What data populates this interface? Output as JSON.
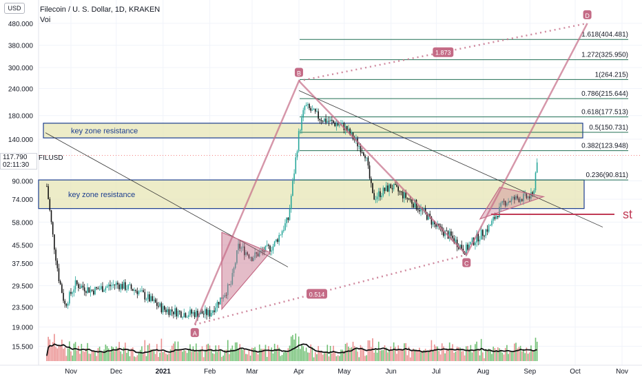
{
  "header": {
    "title": "Filecoin / U. S. Dollar, 1D, KRAKEN",
    "volume_label": "Voi",
    "currency_badge": "USD"
  },
  "price_tag": {
    "price": "117.790",
    "countdown": "02:11:30",
    "symbol": "FILUSD"
  },
  "colors": {
    "zone_fill": "#e7e5b5",
    "zone_border": "#1c3d8f",
    "pattern_pink": "#c46b86",
    "fib_green": "#1f6e52",
    "candle_up": "#26a69a",
    "candle_down": "#111111",
    "vol_up": "#4caf50",
    "vol_down": "#e57373"
  },
  "chart_data": {
    "type": "candlestick",
    "title": "Filecoin / U. S. Dollar, 1D, KRAKEN",
    "y_scale": "log",
    "y_ticks": [
      "480.000",
      "380.000",
      "300.000",
      "240.000",
      "180.000",
      "140.000",
      "90.000",
      "74.000",
      "58.000",
      "45.500",
      "37.500",
      "29.500",
      "23.500",
      "19.000",
      "15.500"
    ],
    "x_ticks": [
      "Nov",
      "Dec",
      "2021",
      "Feb",
      "Mar",
      "Apr",
      "May",
      "Jun",
      "Jul",
      "Aug",
      "Sep",
      "Oct",
      "Nov"
    ],
    "price_path": [
      {
        "date": "2020-10-16",
        "price": 85
      },
      {
        "date": "2020-10-20",
        "price": 50
      },
      {
        "date": "2020-10-24",
        "price": 32
      },
      {
        "date": "2020-10-28",
        "price": 24
      },
      {
        "date": "2020-11-04",
        "price": 30
      },
      {
        "date": "2020-11-15",
        "price": 28
      },
      {
        "date": "2020-12-01",
        "price": 30
      },
      {
        "date": "2020-12-15",
        "price": 28
      },
      {
        "date": "2021-01-01",
        "price": 23
      },
      {
        "date": "2021-01-15",
        "price": 22
      },
      {
        "date": "2021-02-01",
        "price": 22
      },
      {
        "date": "2021-02-15",
        "price": 30
      },
      {
        "date": "2021-02-20",
        "price": 45
      },
      {
        "date": "2021-03-01",
        "price": 40
      },
      {
        "date": "2021-03-15",
        "price": 45
      },
      {
        "date": "2021-03-25",
        "price": 60
      },
      {
        "date": "2021-04-01",
        "price": 150
      },
      {
        "date": "2021-04-05",
        "price": 200
      },
      {
        "date": "2021-04-15",
        "price": 175
      },
      {
        "date": "2021-05-01",
        "price": 160
      },
      {
        "date": "2021-05-15",
        "price": 120
      },
      {
        "date": "2021-05-20",
        "price": 75
      },
      {
        "date": "2021-06-01",
        "price": 85
      },
      {
        "date": "2021-06-15",
        "price": 72
      },
      {
        "date": "2021-06-25",
        "price": 62
      },
      {
        "date": "2021-07-01",
        "price": 55
      },
      {
        "date": "2021-07-10",
        "price": 50
      },
      {
        "date": "2021-07-20",
        "price": 43
      },
      {
        "date": "2021-07-25",
        "price": 47
      },
      {
        "date": "2021-08-05",
        "price": 55
      },
      {
        "date": "2021-08-15",
        "price": 72
      },
      {
        "date": "2021-08-25",
        "price": 75
      },
      {
        "date": "2021-09-03",
        "price": 76
      },
      {
        "date": "2021-09-06",
        "price": 117.79
      }
    ],
    "volume_ma_shown": true,
    "annotations": {
      "zones": [
        {
          "label": "key zone resistance",
          "y_top": 166,
          "y_bottom": 142
        },
        {
          "label": "key zone resistance",
          "y_top": 90.811,
          "y_bottom": 67
        }
      ],
      "fib_levels": [
        {
          "label": "1.618(404.481)",
          "price": 404.481
        },
        {
          "label": "1.272(325.950)",
          "price": 325.95
        },
        {
          "label": "1(264.215)",
          "price": 264.215
        },
        {
          "label": "0.786(215.644)",
          "price": 215.644
        },
        {
          "label": "0.618(177.513)",
          "price": 177.513
        },
        {
          "label": "0.5(150.731)",
          "price": 150.731
        },
        {
          "label": "0.382(123.948)",
          "price": 123.948
        },
        {
          "label": "0.236(90.811)",
          "price": 90.811
        }
      ],
      "points": [
        {
          "label": "A",
          "date": "2021-01-22",
          "price": 19.5
        },
        {
          "label": "B",
          "date": "2021-04-01",
          "price": 260
        },
        {
          "label": "C",
          "date": "2021-07-21",
          "price": 41
        },
        {
          "label": "D",
          "date": "2021-10-09",
          "price": 480
        }
      ],
      "ratios": [
        "1.873",
        "0.514"
      ],
      "marker_text": "st"
    }
  }
}
